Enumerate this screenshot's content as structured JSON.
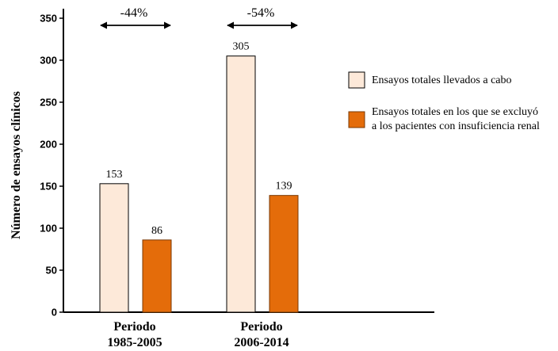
{
  "chart_data": {
    "type": "bar",
    "categories": [
      [
        "Periodo",
        "1985-2005"
      ],
      [
        "Periodo",
        "2006-2014"
      ]
    ],
    "series": [
      {
        "name": "Ensayos totales llevados  a cabo",
        "values": [
          153,
          305
        ],
        "color": "#fde9d9"
      },
      {
        "name": [
          "Ensayos totales en los que se excluyó",
          "a los pacientes con insuficiencia renal"
        ],
        "values": [
          86,
          139
        ],
        "color": "#e46c0a"
      }
    ],
    "data_labels": [
      [
        "153",
        "86"
      ],
      [
        "305",
        "139"
      ]
    ],
    "ylabel": "Número de ensayos clínicos",
    "ylim": [
      0,
      350
    ],
    "yticks": [
      0,
      50,
      100,
      150,
      200,
      250,
      300,
      350
    ],
    "annotations": [
      "-44%",
      "-54%"
    ],
    "grid": false,
    "legend_position": "right"
  }
}
